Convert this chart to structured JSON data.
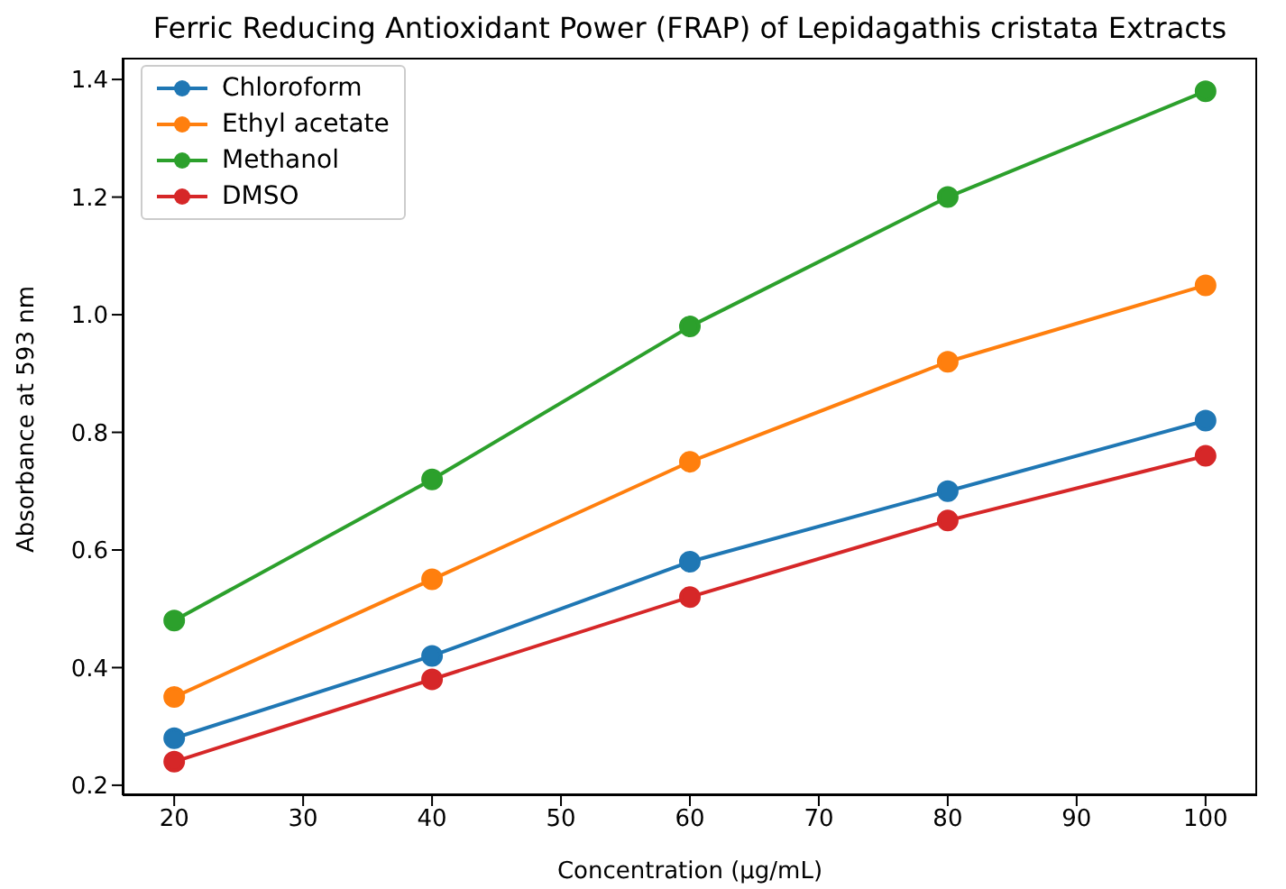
{
  "chart_data": {
    "type": "line",
    "title": "Ferric Reducing Antioxidant Power (FRAP) of Lepidagathis cristata Extracts",
    "xlabel": "Concentration (µg/mL)",
    "ylabel": "Absorbance at 593 nm",
    "x": [
      20,
      40,
      60,
      80,
      100
    ],
    "series": [
      {
        "name": "Chloroform",
        "color": "#1f77b4",
        "values": [
          0.28,
          0.42,
          0.58,
          0.7,
          0.82
        ]
      },
      {
        "name": "Ethyl acetate",
        "color": "#ff7f0e",
        "values": [
          0.35,
          0.55,
          0.75,
          0.92,
          1.05
        ]
      },
      {
        "name": "Methanol",
        "color": "#2ca02c",
        "values": [
          0.48,
          0.72,
          0.98,
          1.2,
          1.38
        ]
      },
      {
        "name": "DMSO",
        "color": "#d62728",
        "values": [
          0.24,
          0.38,
          0.52,
          0.65,
          0.76
        ]
      }
    ],
    "xlim": [
      16,
      104
    ],
    "xticks": [
      20,
      30,
      40,
      50,
      60,
      70,
      80,
      90,
      100
    ],
    "ylim": [
      0.183,
      1.437
    ],
    "yticks": [
      0.2,
      0.4,
      0.6,
      0.8,
      {
        "value": 1,
        "label": "1.0"
      },
      1.2,
      1.4
    ],
    "grid": false,
    "legend": "top left",
    "marker": "circle",
    "line_style": "solid"
  }
}
